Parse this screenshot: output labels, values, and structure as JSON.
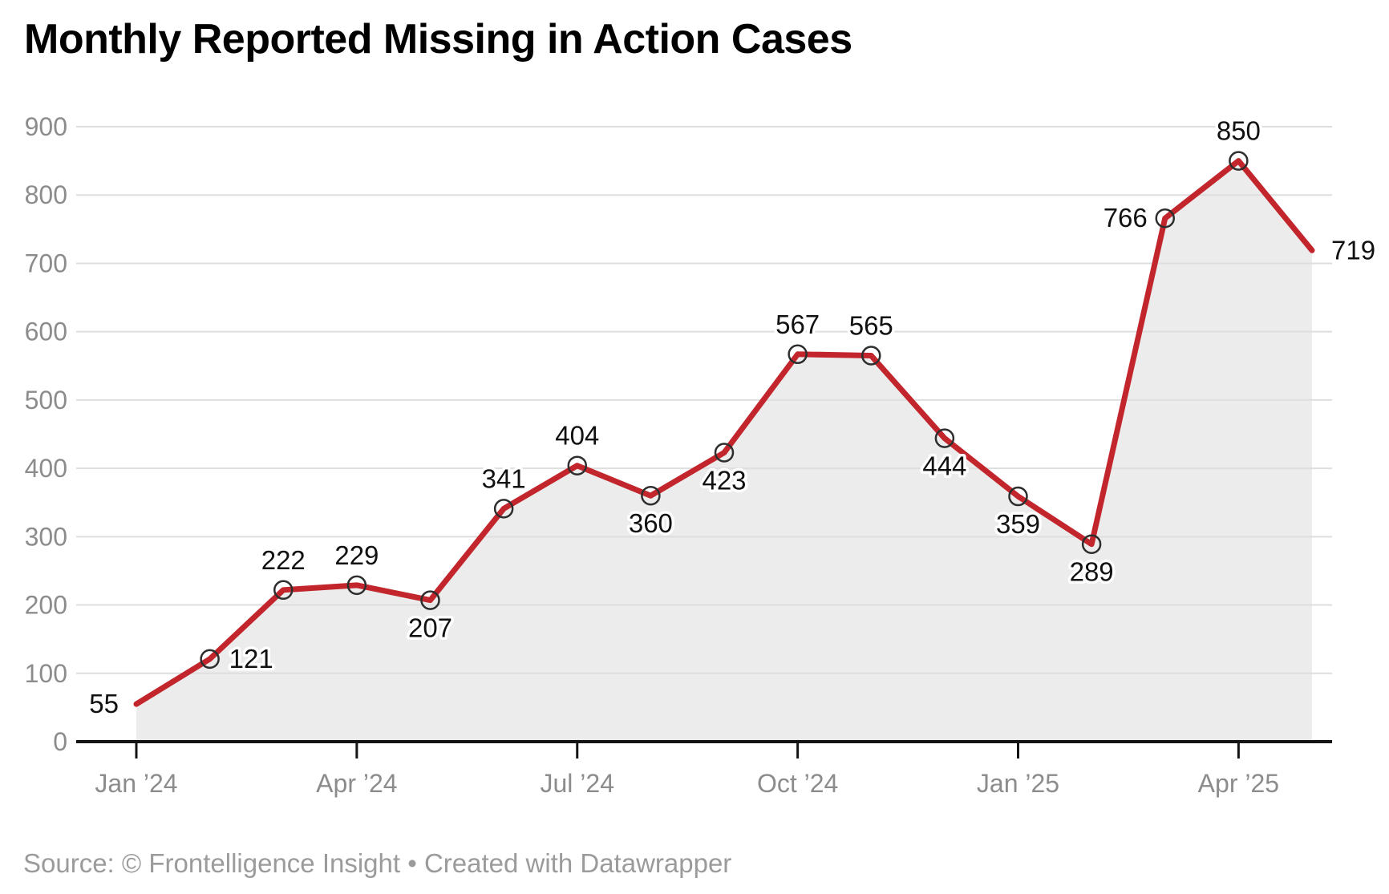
{
  "title": "Monthly Reported Missing in Action Cases",
  "source_line": "Source: © Frontelligence Insight • Created with Datawrapper",
  "chart_data": {
    "type": "line",
    "title": "Monthly Reported Missing in Action Cases",
    "x": [
      "Jan ’24",
      "Feb ’24",
      "Mar ’24",
      "Apr ’24",
      "May ’24",
      "Jun ’24",
      "Jul ’24",
      "Aug ’24",
      "Sep ’24",
      "Oct ’24",
      "Nov ’24",
      "Dec ’24",
      "Jan ’25",
      "Feb ’25",
      "Mar ’25",
      "Apr ’25",
      "May ’25"
    ],
    "values": [
      55,
      121,
      222,
      229,
      207,
      341,
      404,
      360,
      423,
      567,
      565,
      444,
      359,
      289,
      766,
      850,
      719
    ],
    "label_positions": [
      "left",
      "right",
      "above",
      "above",
      "below",
      "above",
      "above",
      "below",
      "below",
      "above",
      "above",
      "below",
      "below",
      "below",
      "left",
      "above",
      "right"
    ],
    "x_tick_labels": [
      "Jan ’24",
      "Apr ’24",
      "Jul ’24",
      "Oct ’24",
      "Jan ’25",
      "Apr ’25"
    ],
    "x_tick_indices": [
      0,
      3,
      6,
      9,
      12,
      15
    ],
    "y_ticks": [
      0,
      100,
      200,
      300,
      400,
      500,
      600,
      700,
      800,
      900
    ],
    "ylim": [
      0,
      900
    ],
    "xlabel": "",
    "ylabel": "",
    "grid": true,
    "legend": "none",
    "marker": "open-circle",
    "endpoint_markers": false,
    "colors": {
      "line": "#c2262c",
      "area": "#ececec",
      "grid": "#dedede",
      "axis": "#141414",
      "marker_stroke": "#2e2e2e",
      "data_label": "#111111",
      "axis_label": "#8c8c8c",
      "title": "#000000",
      "source": "#9b9b9b",
      "background": "#ffffff"
    }
  }
}
